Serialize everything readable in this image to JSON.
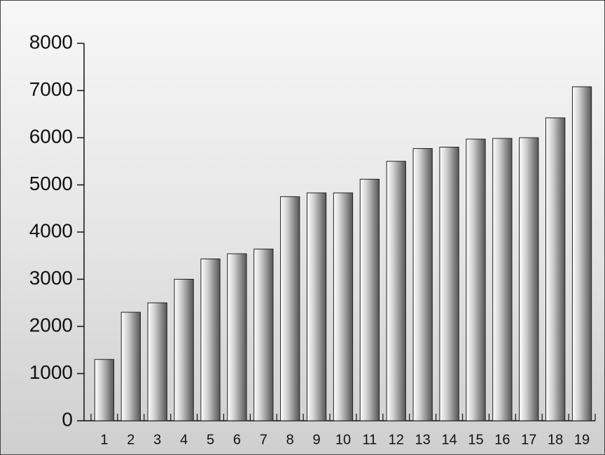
{
  "chart_data": {
    "type": "bar",
    "categories": [
      "1",
      "2",
      "3",
      "4",
      "5",
      "6",
      "7",
      "8",
      "9",
      "10",
      "11",
      "12",
      "13",
      "14",
      "15",
      "16",
      "17",
      "18",
      "19"
    ],
    "values": [
      1300,
      2300,
      2500,
      3000,
      3430,
      3540,
      3640,
      4750,
      4830,
      4830,
      5120,
      5500,
      5770,
      5800,
      5970,
      5985,
      6000,
      6420,
      7080
    ],
    "color": "#8c8c8c",
    "ylim": [
      0,
      8000
    ],
    "yticks": [
      0,
      1000,
      2000,
      3000,
      4000,
      5000,
      6000,
      7000,
      8000
    ]
  }
}
